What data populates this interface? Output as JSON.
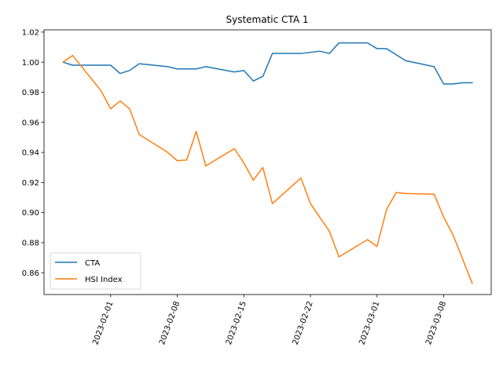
{
  "chart_data": {
    "type": "line",
    "title": "Systematic CTA 1",
    "xlabel": "",
    "ylabel": "",
    "x_type": "date",
    "xlim": [
      "2023-01-25",
      "2023-03-13"
    ],
    "ylim": [
      0.8455,
      1.0215
    ],
    "x_ticks": [
      "2023-02-01",
      "2023-02-08",
      "2023-02-15",
      "2023-02-22",
      "2023-03-01",
      "2023-03-08"
    ],
    "y_ticks": [
      0.86,
      0.88,
      0.9,
      0.92,
      0.94,
      0.96,
      0.98,
      1.0,
      1.02
    ],
    "y_tick_labels": [
      "0.86",
      "0.88",
      "0.90",
      "0.92",
      "0.94",
      "0.96",
      "0.98",
      "1.00",
      "1.02"
    ],
    "grid": false,
    "legend_position": "lower-left",
    "series": [
      {
        "name": "CTA",
        "color": "#1f77b4",
        "points": [
          [
            "2023-01-27",
            1.0
          ],
          [
            "2023-01-28",
            0.998
          ],
          [
            "2023-01-29",
            0.998
          ],
          [
            "2023-01-31",
            0.998
          ],
          [
            "2023-02-01",
            0.998
          ],
          [
            "2023-02-02",
            0.9925
          ],
          [
            "2023-02-03",
            0.9945
          ],
          [
            "2023-02-04",
            0.999
          ],
          [
            "2023-02-07",
            0.997
          ],
          [
            "2023-02-08",
            0.9955
          ],
          [
            "2023-02-10",
            0.9955
          ],
          [
            "2023-02-11",
            0.997
          ],
          [
            "2023-02-14",
            0.9935
          ],
          [
            "2023-02-15",
            0.9945
          ],
          [
            "2023-02-16",
            0.9875
          ],
          [
            "2023-02-17",
            0.9905
          ],
          [
            "2023-02-18",
            1.0058
          ],
          [
            "2023-02-21",
            1.0058
          ],
          [
            "2023-02-23",
            1.0073
          ],
          [
            "2023-02-24",
            1.0058
          ],
          [
            "2023-02-25",
            1.0128
          ],
          [
            "2023-02-28",
            1.0128
          ],
          [
            "2023-03-01",
            1.009
          ],
          [
            "2023-03-02",
            1.009
          ],
          [
            "2023-03-04",
            1.001
          ],
          [
            "2023-03-07",
            0.997
          ],
          [
            "2023-03-08",
            0.9855
          ],
          [
            "2023-03-09",
            0.9855
          ],
          [
            "2023-03-10",
            0.9863
          ],
          [
            "2023-03-11",
            0.9863
          ]
        ]
      },
      {
        "name": "HSI Index",
        "color": "#ff7f0e",
        "points": [
          [
            "2023-01-27",
            1.0
          ],
          [
            "2023-01-28",
            1.0045
          ],
          [
            "2023-01-31",
            0.981
          ],
          [
            "2023-02-01",
            0.969
          ],
          [
            "2023-02-02",
            0.9742
          ],
          [
            "2023-02-03",
            0.969
          ],
          [
            "2023-02-04",
            0.952
          ],
          [
            "2023-02-07",
            0.94
          ],
          [
            "2023-02-08",
            0.9345
          ],
          [
            "2023-02-09",
            0.935
          ],
          [
            "2023-02-10",
            0.954
          ],
          [
            "2023-02-11",
            0.931
          ],
          [
            "2023-02-14",
            0.9425
          ],
          [
            "2023-02-15",
            0.933
          ],
          [
            "2023-02-16",
            0.9215
          ],
          [
            "2023-02-17",
            0.93
          ],
          [
            "2023-02-18",
            0.906
          ],
          [
            "2023-02-21",
            0.923
          ],
          [
            "2023-02-22",
            0.906
          ],
          [
            "2023-02-24",
            0.8875
          ],
          [
            "2023-02-25",
            0.8705
          ],
          [
            "2023-02-28",
            0.882
          ],
          [
            "2023-03-01",
            0.8775
          ],
          [
            "2023-03-02",
            0.902
          ],
          [
            "2023-03-03",
            0.9133
          ],
          [
            "2023-03-04",
            0.9127
          ],
          [
            "2023-03-07",
            0.9122
          ],
          [
            "2023-03-08",
            0.897
          ],
          [
            "2023-03-09",
            0.885
          ],
          [
            "2023-03-11",
            0.853
          ]
        ]
      }
    ]
  }
}
